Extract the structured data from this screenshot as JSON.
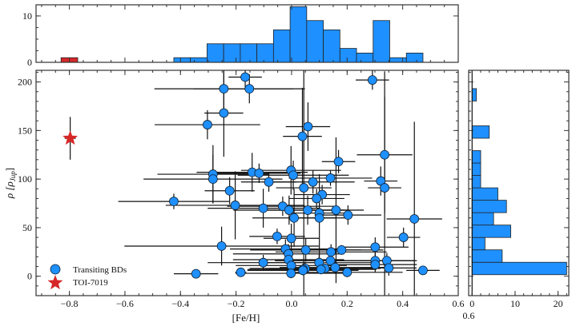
{
  "chart_data": [
    {
      "panel": "main",
      "type": "scatter",
      "xlabel": "[Fe/H]",
      "ylabel": "ρ [ρ",
      "ylabel_sub": "Jup",
      "ylabel_close": "]",
      "xlim": [
        -0.92,
        0.6
      ],
      "ylim": [
        -20,
        212
      ],
      "xticks": [
        -0.8,
        -0.6,
        -0.4,
        -0.2,
        0.0,
        0.2,
        0.4,
        0.6
      ],
      "xtick_labels": [
        "−0.8",
        "−0.6",
        "−0.4",
        "−0.2",
        "0.0",
        "0.2",
        "0.4",
        "0.6"
      ],
      "yticks": [
        0,
        50,
        100,
        150,
        200
      ],
      "ytick_labels": [
        "0",
        "50",
        "100",
        "150",
        "200"
      ],
      "grid": false,
      "legend_placement": "lower-left",
      "series": [
        {
          "name": "Transiting BDs",
          "color": "#1e90ff",
          "marker": "circle",
          "columns": [
            "feh",
            "rho",
            "feh_err",
            "rho_err"
          ],
          "points": [
            [
              -0.167,
              205,
              0.06,
              12
            ],
            [
              -0.244,
              193,
              0.25,
              25
            ],
            [
              -0.152,
              193,
              0.2,
              15
            ],
            [
              -0.244,
              168,
              0.07,
              45
            ],
            [
              -0.303,
              156,
              0.19,
              15
            ],
            [
              0.059,
              154,
              0.08,
              25
            ],
            [
              0.039,
              144,
              0.07,
              50
            ],
            [
              0.291,
              202,
              0.06,
              10
            ],
            [
              0.335,
              125,
              0.1,
              60
            ],
            [
              0.169,
              118,
              0.06,
              12
            ],
            [
              -0.283,
              105,
              0.2,
              30
            ],
            [
              -0.283,
              100,
              0.25,
              25
            ],
            [
              -0.142,
              107,
              0.2,
              20
            ],
            [
              -0.117,
              106,
              0.15,
              10
            ],
            [
              -0.082,
              97,
              0.1,
              10
            ],
            [
              -0.002,
              109,
              0.18,
              25
            ],
            [
              0.006,
              104,
              0.2,
              15
            ],
            [
              0.14,
              101,
              0.15,
              8
            ],
            [
              0.077,
              97,
              0.15,
              12
            ],
            [
              0.321,
              98,
              0.06,
              15
            ],
            [
              0.335,
              91,
              0.06,
              120
            ],
            [
              0.044,
              91,
              0.1,
              200
            ],
            [
              0.11,
              84,
              0.1,
              10
            ],
            [
              0.09,
              80,
              0.1,
              10
            ],
            [
              -0.223,
              88,
              0.09,
              14
            ],
            [
              -0.424,
              77,
              0.2,
              8
            ],
            [
              -0.203,
              73,
              0.25,
              35
            ],
            [
              -0.102,
              70,
              0.2,
              20
            ],
            [
              -0.032,
              72,
              0.2,
              10
            ],
            [
              -0.009,
              68,
              0.2,
              15
            ],
            [
              0.009,
              60,
              0.15,
              30
            ],
            [
              0.058,
              68,
              0.15,
              15
            ],
            [
              0.1,
              65,
              0.1,
              10
            ],
            [
              0.1,
              60,
              0.1,
              45
            ],
            [
              0.16,
              68,
              0.1,
              75
            ],
            [
              0.203,
              63,
              0.12,
              10
            ],
            [
              0.442,
              59,
              0.1,
              100
            ],
            [
              -0.052,
              41,
              0.1,
              8
            ],
            [
              -0.001,
              39,
              0.1,
              15
            ],
            [
              0.403,
              40,
              0.06,
              10
            ],
            [
              -0.252,
              31,
              0.35,
              20
            ],
            [
              -0.022,
              28,
              0.2,
              10
            ],
            [
              -0.011,
              23,
              0.2,
              10
            ],
            [
              0.051,
              27,
              0.2,
              12
            ],
            [
              0.142,
              25,
              0.2,
              8
            ],
            [
              0.18,
              27,
              0.15,
              5
            ],
            [
              0.301,
              30,
              0.12,
              10
            ],
            [
              -0.011,
              17,
              0.2,
              10
            ],
            [
              -0.102,
              14,
              0.2,
              8
            ],
            [
              -0.001,
              11,
              0.2,
              8
            ],
            [
              0.099,
              14,
              0.2,
              8
            ],
            [
              0.14,
              16,
              0.2,
              6
            ],
            [
              0.301,
              16,
              0.15,
              8
            ],
            [
              0.343,
              16,
              0.1,
              8
            ],
            [
              0.301,
              12,
              0.15,
              8
            ],
            [
              0.35,
              8.5,
              0.1,
              8
            ],
            [
              0.049,
              8,
              0.2,
              6
            ],
            [
              0.041,
              7,
              0.2,
              6
            ],
            [
              0.157,
              9,
              0.2,
              6
            ],
            [
              0.12,
              8,
              0.2,
              5
            ],
            [
              0.106,
              7,
              0.2,
              5
            ],
            [
              0.041,
              6,
              0.2,
              5
            ],
            [
              -0.002,
              3,
              0.2,
              5
            ],
            [
              0.2,
              4,
              0.2,
              5
            ],
            [
              0.473,
              6,
              0.06,
              4
            ],
            [
              -0.344,
              2.5,
              0.08,
              4
            ],
            [
              -0.183,
              4,
              0.02,
              4
            ]
          ]
        },
        {
          "name": "TOI-7019",
          "color": "#d62728",
          "marker": "star",
          "columns": [
            "feh",
            "rho",
            "feh_err",
            "rho_err"
          ],
          "points": [
            [
              -0.797,
              142,
              0.02,
              22
            ]
          ]
        }
      ]
    },
    {
      "panel": "top",
      "type": "bar",
      "orientation": "vertical",
      "xlim": [
        -0.92,
        0.6
      ],
      "ylim": [
        0,
        12.4
      ],
      "yticks": [
        0,
        10
      ],
      "ytick_labels": [
        "0",
        "10"
      ],
      "series": [
        {
          "name": "Transiting BDs",
          "color": "#1e90ff",
          "bin_start": -0.424,
          "bin_width": 0.0598,
          "counts": [
            1,
            1,
            4,
            4,
            4,
            4,
            7,
            12,
            9,
            7,
            3,
            2,
            9,
            1,
            2
          ]
        },
        {
          "name": "TOI-7019",
          "color": "#d62728",
          "bin_start": -0.83,
          "bin_width": 0.06,
          "counts": [
            1
          ]
        }
      ]
    },
    {
      "panel": "right",
      "type": "bar",
      "orientation": "horizontal",
      "xlim": [
        -0.8,
        22.5
      ],
      "ylim": [
        -20,
        212
      ],
      "xticks": [
        0,
        10,
        20
      ],
      "xtick_labels": [
        "0",
        "10",
        "20"
      ],
      "overlap_label": "0.6",
      "series": [
        {
          "name": "Transiting BDs",
          "color": "#1e90ff",
          "bin_start": 1.6,
          "bin_width": 12.77,
          "counts": [
            22,
            7,
            3,
            9,
            5,
            8,
            6,
            2,
            2,
            2,
            0,
            4,
            0,
            0,
            1
          ]
        }
      ]
    }
  ],
  "legend": {
    "items": [
      {
        "label": "Transiting BDs",
        "marker": "circle",
        "color": "#1e90ff"
      },
      {
        "label": "TOI-7019",
        "marker": "star",
        "color": "#d62728"
      }
    ]
  }
}
